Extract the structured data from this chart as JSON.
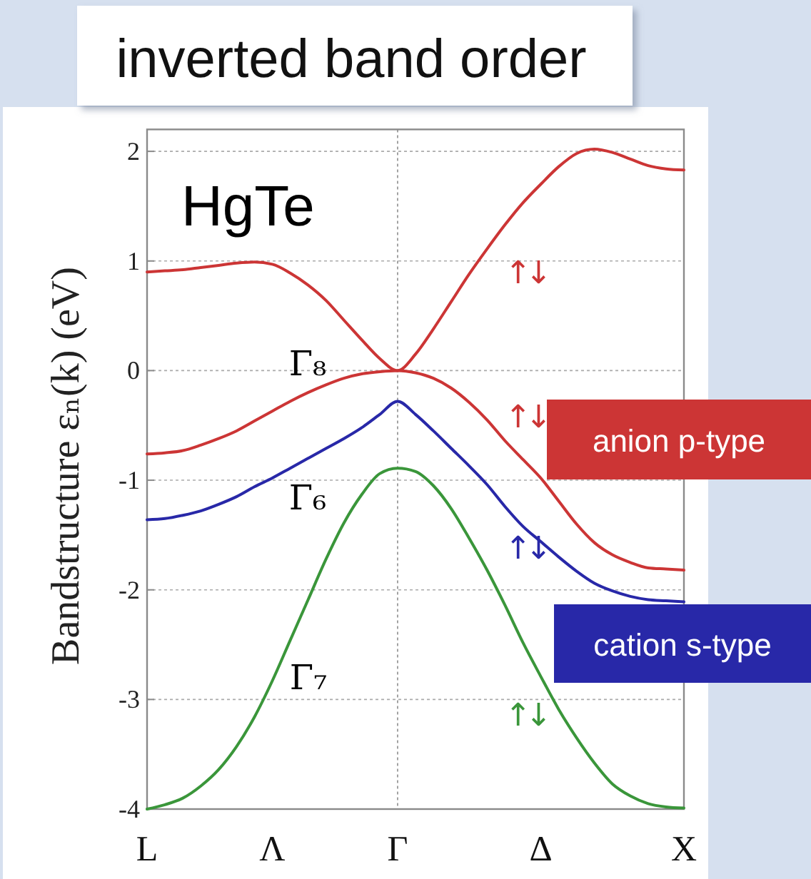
{
  "chart_data": {
    "type": "line",
    "title": "inverted band order",
    "ylabel": "Bandstructure εₙ(k) (eV)",
    "categories": [
      "L",
      null,
      null,
      null,
      null,
      null,
      null,
      "Λ",
      null,
      null,
      null,
      null,
      null,
      null,
      "Γ",
      null,
      null,
      null,
      null,
      null,
      null,
      null,
      "Δ",
      null,
      null,
      null,
      null,
      null,
      null,
      null,
      "X"
    ],
    "ylim": [
      -4,
      2.2
    ],
    "yticks": [
      -4,
      -3,
      -2,
      -1,
      0,
      1,
      2
    ],
    "grid": "y",
    "legend": "right",
    "ref_lines": [
      {
        "axis": "x",
        "value": "Γ",
        "color": "#9a9a9a",
        "line_style": "dotted"
      }
    ],
    "series": [
      {
        "color": "#cc3535",
        "values": [
          0.9,
          0.91,
          0.92,
          0.94,
          0.96,
          0.98,
          0.99,
          0.97,
          0.89,
          0.78,
          0.64,
          0.46,
          0.28,
          0.11,
          0.0,
          0.15,
          0.38,
          0.63,
          0.88,
          1.11,
          1.33,
          1.53,
          1.7,
          1.86,
          1.98,
          2.02,
          1.99,
          1.93,
          1.87,
          1.84,
          1.83
        ]
      },
      {
        "name": "anion p-type",
        "color": "#cc3535",
        "values": [
          -0.76,
          -0.75,
          -0.73,
          -0.68,
          -0.62,
          -0.55,
          -0.46,
          -0.37,
          -0.28,
          -0.2,
          -0.13,
          -0.07,
          -0.03,
          -0.01,
          0.0,
          -0.02,
          -0.07,
          -0.16,
          -0.29,
          -0.45,
          -0.64,
          -0.81,
          -0.98,
          -1.19,
          -1.4,
          -1.57,
          -1.68,
          -1.75,
          -1.8,
          -1.81,
          -1.82
        ]
      },
      {
        "name": "cation s-type",
        "color": "#2828a8",
        "values": [
          -1.36,
          -1.35,
          -1.32,
          -1.28,
          -1.22,
          -1.15,
          -1.06,
          -0.98,
          -0.89,
          -0.8,
          -0.71,
          -0.62,
          -0.52,
          -0.4,
          -0.28,
          -0.4,
          -0.55,
          -0.71,
          -0.87,
          -1.04,
          -1.24,
          -1.42,
          -1.56,
          -1.7,
          -1.83,
          -1.94,
          -2.01,
          -2.06,
          -2.09,
          -2.1,
          -2.11
        ]
      },
      {
        "color": "#3a963a",
        "values": [
          -4.0,
          -3.96,
          -3.9,
          -3.79,
          -3.64,
          -3.43,
          -3.16,
          -2.83,
          -2.46,
          -2.09,
          -1.72,
          -1.39,
          -1.13,
          -0.94,
          -0.89,
          -0.92,
          -1.05,
          -1.26,
          -1.53,
          -1.82,
          -2.14,
          -2.48,
          -2.79,
          -3.09,
          -3.35,
          -3.58,
          -3.77,
          -3.88,
          -3.95,
          -3.98,
          -3.99
        ]
      }
    ],
    "annotations": [
      "HgTe",
      "Γ₈",
      "Γ₆",
      "Γ₇",
      "↑↓",
      "↑↓",
      "↑↓",
      "↑↓"
    ]
  }
}
